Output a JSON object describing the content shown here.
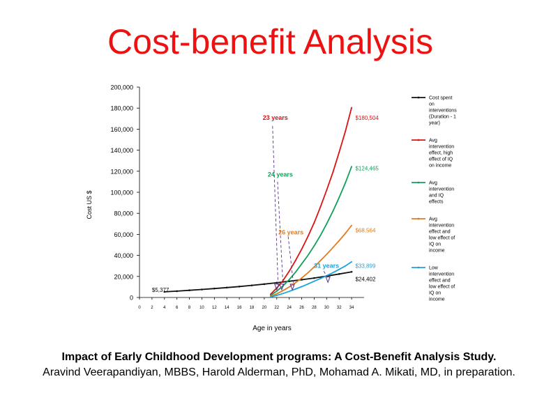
{
  "slide": {
    "title": "Cost-benefit Analysis",
    "citation_title": "Impact of Early Childhood Development programs: A Cost-Benefit Analysis Study.",
    "citation_authors": "Aravind Veerapandiyan, MBBS, Harold Alderman, PhD, Mohamad A. Mikati, MD, in preparation."
  },
  "chart_data": {
    "type": "line",
    "title": "",
    "xlabel": "Age in years",
    "ylabel": "Cost US $",
    "xlim": [
      0,
      36
    ],
    "ylim": [
      0,
      200000
    ],
    "x_ticks": [
      "0",
      "2",
      "4",
      "6",
      "8",
      "10",
      "12",
      "14",
      "16",
      "18",
      "20",
      "22",
      "24",
      "26",
      "28",
      "30",
      "32",
      "34"
    ],
    "y_ticks": [
      "0",
      "20,000",
      "40,000",
      "60,000",
      "80,000",
      "100,000",
      "120,000",
      "140,000",
      "160,000",
      "180,000",
      "200,000"
    ],
    "grid": false,
    "legend_position": "right",
    "series": [
      {
        "name": "Cost spent on interventions (Duration - 1 year)",
        "color": "#111111",
        "legend_lines": [
          "Cost spent",
          "on",
          "interventions",
          "(Duration - 1",
          "year)"
        ],
        "x": [
          4,
          6,
          8,
          10,
          12,
          14,
          16,
          18,
          20,
          22,
          24,
          26,
          28,
          30,
          32,
          34
        ],
        "y": [
          5377,
          6000,
          6800,
          7600,
          8500,
          9400,
          10400,
          11500,
          12700,
          14000,
          15400,
          16900,
          18500,
          20300,
          22300,
          24402
        ]
      },
      {
        "name": "Avg intervention effect, high effect of IQ on income",
        "color": "#dd1111",
        "legend_lines": [
          "Avg",
          "intervention",
          "effect, high",
          "effect of IQ",
          "on income"
        ],
        "x": [
          21,
          22,
          23,
          24,
          25,
          26,
          27,
          28,
          29,
          30,
          31,
          32,
          33,
          34
        ],
        "y": [
          3000,
          9000,
          16000,
          25000,
          35000,
          46000,
          58000,
          71000,
          86000,
          102000,
          119000,
          138000,
          158000,
          180504
        ]
      },
      {
        "name": "Avg intervention and IQ effects",
        "color": "#11a05a",
        "legend_lines": [
          "Avg",
          "intervention",
          "and IQ",
          "effects"
        ],
        "x": [
          21,
          22,
          23,
          24,
          25,
          26,
          27,
          28,
          29,
          30,
          31,
          32,
          33,
          34
        ],
        "y": [
          2000,
          6000,
          11000,
          17000,
          24000,
          32000,
          40000,
          49000,
          59000,
          70000,
          82000,
          95000,
          109000,
          124465
        ]
      },
      {
        "name": "Avg intervention effect and low effect of IQ on income",
        "color": "#e07b20",
        "legend_lines": [
          "Avg",
          "intervention",
          "effect and",
          "low effect of",
          "IQ on",
          "income"
        ],
        "x": [
          21,
          22,
          23,
          24,
          25,
          26,
          27,
          28,
          29,
          30,
          31,
          32,
          33,
          34
        ],
        "y": [
          1000,
          3500,
          6500,
          10000,
          14000,
          18500,
          23500,
          29000,
          35000,
          41000,
          47500,
          54000,
          61000,
          68564
        ]
      },
      {
        "name": "Low intervention effect and low effect of IQ on income",
        "color": "#1aa3dd",
        "legend_lines": [
          "Low",
          "intervention",
          "effect and",
          "low effect of",
          "IQ on",
          "income"
        ],
        "x": [
          21,
          22,
          23,
          24,
          25,
          26,
          27,
          28,
          29,
          30,
          31,
          32,
          33,
          34
        ],
        "y": [
          500,
          2000,
          3800,
          5800,
          8000,
          10300,
          12800,
          15400,
          18000,
          20700,
          23600,
          26700,
          30000,
          33899
        ]
      }
    ],
    "annotations": [
      {
        "text": "23 years",
        "x": 22.0,
        "color": "#dd1111",
        "label_y": 169000,
        "line_top": 163000,
        "tip_y": 10000
      },
      {
        "text": "24 years",
        "x": 22.8,
        "color": "#11a05a",
        "label_y": 115000,
        "line_top": 110000,
        "tip_y": 10000
      },
      {
        "text": "26 years",
        "x": 24.5,
        "color": "#e07b20",
        "label_y": 60000,
        "line_top": 58000,
        "tip_y": 10000
      },
      {
        "text": "31 years",
        "x": 30.2,
        "color": "#1aa3dd",
        "label_y": 28000,
        "line_top": 25000,
        "tip_y": 17000
      }
    ],
    "value_labels": [
      {
        "text": "$5,377",
        "x": 2.0,
        "y": 5300,
        "color": "#000000"
      },
      {
        "text": "$180,504",
        "x": 34.6,
        "y": 169000,
        "color": "#dd1111"
      },
      {
        "text": "$124,465",
        "x": 34.6,
        "y": 121000,
        "color": "#11a05a"
      },
      {
        "text": "$68,564",
        "x": 34.6,
        "y": 62000,
        "color": "#e07b20"
      },
      {
        "text": "$33,899",
        "x": 34.6,
        "y": 28000,
        "color": "#1aa3dd"
      },
      {
        "text": "$24,402",
        "x": 34.6,
        "y": 15500,
        "color": "#000000"
      }
    ]
  }
}
